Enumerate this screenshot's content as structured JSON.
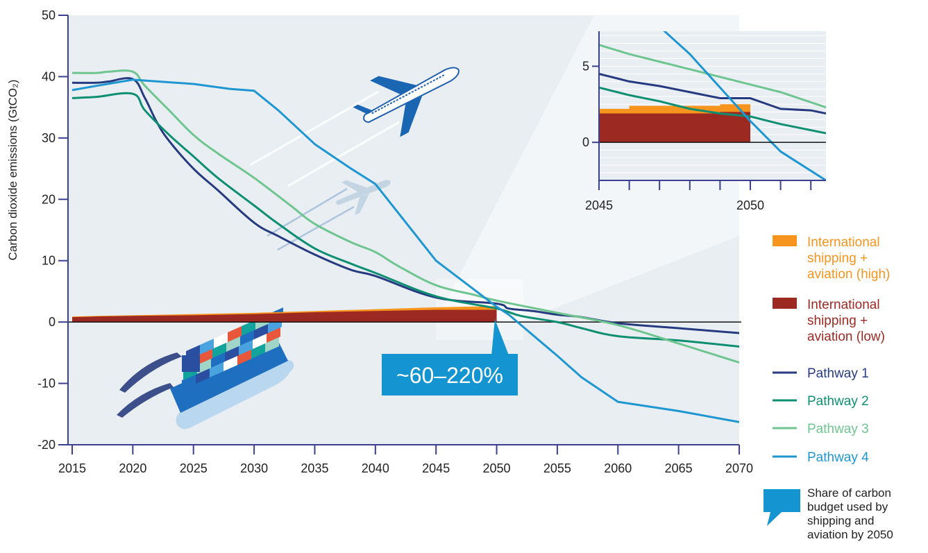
{
  "colors": {
    "plot_bg": "#e9eef3",
    "axis": "#3a3f8f",
    "high_area": "#f7941d",
    "low_area": "#9d2a22",
    "pathway1": "#263a80",
    "pathway2": "#0e8f72",
    "pathway3": "#6ec58f",
    "pathway4": "#1e96d2",
    "callout": "#1495d1"
  },
  "chart_data": [
    {
      "type": "line",
      "ylabel": "Carbon dioxide emissions  (GtCO₂)",
      "xlabel": "",
      "xlim": [
        2015,
        2070
      ],
      "ylim": [
        -20,
        50
      ],
      "x_ticks": [
        "2015",
        "2020",
        "2025",
        "2030",
        "2035",
        "2040",
        "2045",
        "2050",
        "2055",
        "2060",
        "2065",
        "2070"
      ],
      "y_ticks": [
        "-20",
        "-10",
        "0",
        "10",
        "20",
        "30",
        "40",
        "50"
      ],
      "series": [
        {
          "name": "Pathway 1",
          "color_key": "pathway1",
          "points": [
            [
              2015,
              39.0
            ],
            [
              2017,
              39.0
            ],
            [
              2018,
              39.2
            ],
            [
              2020,
              39.6
            ],
            [
              2021,
              36.5
            ],
            [
              2022,
              32.5
            ],
            [
              2023,
              29.5
            ],
            [
              2025,
              25.0
            ],
            [
              2027,
              21.5
            ],
            [
              2030,
              16.2
            ],
            [
              2032,
              14.0
            ],
            [
              2035,
              11.0
            ],
            [
              2038,
              8.5
            ],
            [
              2040,
              7.5
            ],
            [
              2045,
              4.0
            ],
            [
              2050,
              3.0
            ],
            [
              2051,
              2.2
            ],
            [
              2053,
              1.8
            ],
            [
              2055,
              1.2
            ],
            [
              2057,
              0.8
            ],
            [
              2060,
              -0.2
            ],
            [
              2065,
              -1.0
            ],
            [
              2070,
              -1.8
            ]
          ]
        },
        {
          "name": "Pathway 2",
          "color_key": "pathway2",
          "points": [
            [
              2015,
              36.5
            ],
            [
              2017,
              36.7
            ],
            [
              2020,
              37.2
            ],
            [
              2021,
              34.5
            ],
            [
              2023,
              30.5
            ],
            [
              2025,
              27.0
            ],
            [
              2027,
              23.5
            ],
            [
              2030,
              19.0
            ],
            [
              2032,
              16.0
            ],
            [
              2035,
              12.0
            ],
            [
              2038,
              9.5
            ],
            [
              2040,
              8.0
            ],
            [
              2045,
              4.2
            ],
            [
              2050,
              2.2
            ],
            [
              2052,
              1.0
            ],
            [
              2055,
              0.0
            ],
            [
              2057,
              -1.0
            ],
            [
              2060,
              -2.3
            ],
            [
              2065,
              -3.0
            ],
            [
              2070,
              -4.0
            ]
          ]
        },
        {
          "name": "Pathway 3",
          "color_key": "pathway3",
          "points": [
            [
              2015,
              40.6
            ],
            [
              2017,
              40.6
            ],
            [
              2018,
              40.8
            ],
            [
              2020,
              40.8
            ],
            [
              2021,
              38.5
            ],
            [
              2023,
              34.5
            ],
            [
              2025,
              30.5
            ],
            [
              2027,
              27.5
            ],
            [
              2030,
              23.5
            ],
            [
              2033,
              19.0
            ],
            [
              2035,
              16.0
            ],
            [
              2038,
              13.0
            ],
            [
              2040,
              11.4
            ],
            [
              2042,
              9.0
            ],
            [
              2045,
              6.0
            ],
            [
              2048,
              4.5
            ],
            [
              2050,
              3.5
            ],
            [
              2055,
              1.5
            ],
            [
              2060,
              -0.5
            ],
            [
              2065,
              -3.5
            ],
            [
              2070,
              -6.6
            ]
          ]
        },
        {
          "name": "Pathway 4",
          "color_key": "pathway4",
          "points": [
            [
              2015,
              37.8
            ],
            [
              2017,
              38.5
            ],
            [
              2020,
              39.5
            ],
            [
              2025,
              38.8
            ],
            [
              2028,
              38.0
            ],
            [
              2030,
              37.7
            ],
            [
              2032,
              34.5
            ],
            [
              2035,
              29.0
            ],
            [
              2038,
              25.0
            ],
            [
              2040,
              22.5
            ],
            [
              2045,
              10.0
            ],
            [
              2050,
              2.5
            ],
            [
              2051,
              1.2
            ],
            [
              2055,
              -5.5
            ],
            [
              2057,
              -9.0
            ],
            [
              2060,
              -13.0
            ],
            [
              2065,
              -14.5
            ],
            [
              2070,
              -16.3
            ]
          ]
        }
      ],
      "areas": [
        {
          "name": "International shipping + aviation (high)",
          "color_key": "high_area",
          "points": [
            [
              2015,
              0.9
            ],
            [
              2017,
              1.0
            ],
            [
              2020,
              1.1
            ],
            [
              2025,
              1.3
            ],
            [
              2030,
              1.5
            ],
            [
              2035,
              1.8
            ],
            [
              2040,
              2.1
            ],
            [
              2045,
              2.4
            ],
            [
              2050,
              2.6
            ]
          ]
        },
        {
          "name": "International shipping + aviation (low)",
          "color_key": "low_area",
          "points": [
            [
              2015,
              0.8
            ],
            [
              2017,
              0.9
            ],
            [
              2020,
              1.0
            ],
            [
              2025,
              1.1
            ],
            [
              2030,
              1.3
            ],
            [
              2035,
              1.6
            ],
            [
              2040,
              1.8
            ],
            [
              2045,
              2.0
            ],
            [
              2050,
              2.0
            ]
          ]
        }
      ],
      "callout": "~60–220%"
    },
    {
      "type": "line",
      "role": "inset zoom",
      "xlim": [
        2045,
        2052.5
      ],
      "ylim": [
        -2.5,
        7.3
      ],
      "x_ticks": [
        "2045",
        "",
        "",
        "",
        "",
        "2050",
        "",
        ""
      ],
      "y_ticks": [
        "0",
        "5"
      ],
      "series": [
        {
          "name": "Pathway 1",
          "color_key": "pathway1",
          "points": [
            [
              2045,
              4.5
            ],
            [
              2046,
              4.0
            ],
            [
              2047,
              3.7
            ],
            [
              2048,
              3.3
            ],
            [
              2049,
              2.9
            ],
            [
              2050,
              2.9
            ],
            [
              2051,
              2.2
            ],
            [
              2052,
              2.1
            ],
            [
              2052.5,
              1.9
            ]
          ]
        },
        {
          "name": "Pathway 2",
          "color_key": "pathway2",
          "points": [
            [
              2045,
              3.6
            ],
            [
              2046,
              3.1
            ],
            [
              2047,
              2.7
            ],
            [
              2048,
              2.2
            ],
            [
              2049,
              1.9
            ],
            [
              2050,
              1.7
            ],
            [
              2051,
              1.2
            ],
            [
              2052.5,
              0.6
            ]
          ]
        },
        {
          "name": "Pathway 3",
          "color_key": "pathway3",
          "points": [
            [
              2045,
              6.4
            ],
            [
              2046,
              5.8
            ],
            [
              2047,
              5.3
            ],
            [
              2048,
              4.8
            ],
            [
              2049,
              4.3
            ],
            [
              2050,
              3.8
            ],
            [
              2051,
              3.3
            ],
            [
              2052.5,
              2.3
            ]
          ]
        },
        {
          "name": "Pathway 4",
          "color_key": "pathway4",
          "points": [
            [
              2047,
              7.6
            ],
            [
              2048,
              5.8
            ],
            [
              2049,
              3.6
            ],
            [
              2050,
              1.4
            ],
            [
              2051,
              -0.6
            ],
            [
              2052.5,
              -2.5
            ]
          ]
        }
      ],
      "areas": [
        {
          "name": "International shipping + aviation (high)",
          "color_key": "high_area",
          "points": [
            [
              2045,
              2.2
            ],
            [
              2046,
              2.4
            ],
            [
              2047,
              2.4
            ],
            [
              2048,
              2.4
            ],
            [
              2049,
              2.5
            ],
            [
              2050,
              2.6
            ]
          ]
        },
        {
          "name": "International shipping + aviation (low)",
          "color_key": "low_area",
          "points": [
            [
              2045,
              1.9
            ],
            [
              2046,
              1.9
            ],
            [
              2047,
              1.9
            ],
            [
              2048,
              1.9
            ],
            [
              2049,
              2.0
            ],
            [
              2050,
              2.0
            ]
          ]
        }
      ]
    }
  ],
  "legend": {
    "items": [
      {
        "label": "International shipping + aviation (high)",
        "lines": [
          "International",
          "shipping +",
          "aviation (high)"
        ],
        "kind": "area",
        "color_key": "high_area"
      },
      {
        "label": "International shipping + aviation (low)",
        "lines": [
          "International",
          "shipping +",
          "aviation (low)"
        ],
        "kind": "area",
        "color_key": "low_area"
      },
      {
        "label": "Pathway 1",
        "lines": [
          "Pathway 1"
        ],
        "kind": "line",
        "color_key": "pathway1"
      },
      {
        "label": "Pathway 2",
        "lines": [
          "Pathway 2"
        ],
        "kind": "line",
        "color_key": "pathway2"
      },
      {
        "label": "Pathway 3",
        "lines": [
          "Pathway 3"
        ],
        "kind": "line",
        "color_key": "pathway3"
      },
      {
        "label": "Pathway 4",
        "lines": [
          "Pathway 4"
        ],
        "kind": "line",
        "color_key": "pathway4"
      }
    ],
    "note": "Share of carbon budget used by shipping and aviation by 2050",
    "note_lines": [
      "Share of carbon",
      "budget used by",
      "shipping and",
      "aviation by 2050"
    ]
  },
  "icons": [
    "airplane-icon",
    "airplane-shadow-icon",
    "container-ship-icon",
    "speech-bubble-icon"
  ]
}
